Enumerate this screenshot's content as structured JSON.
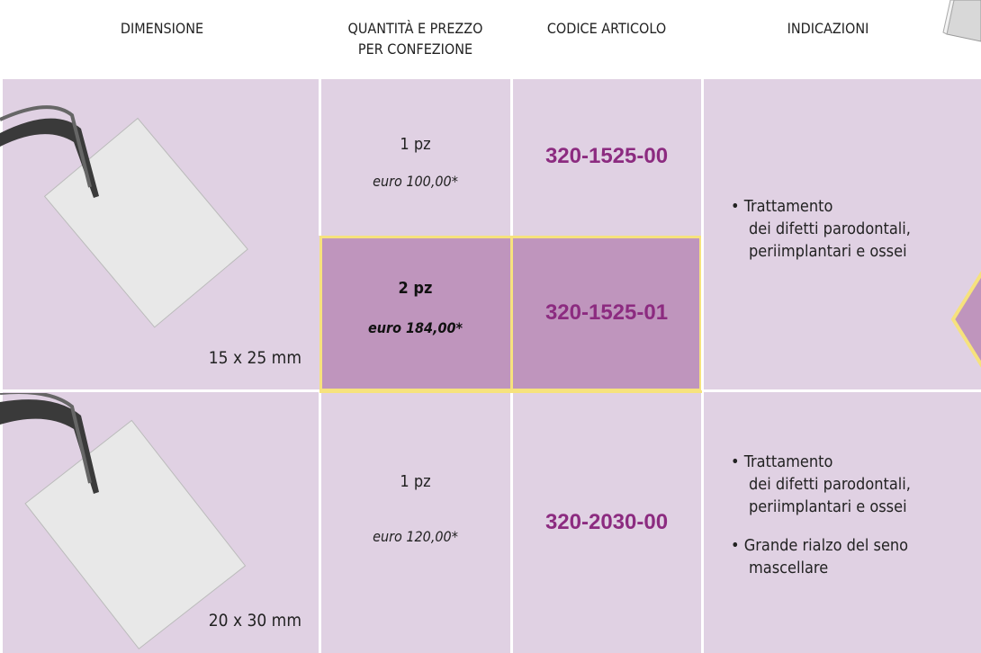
{
  "header": {
    "columns": [
      [
        "DIMENSIONE"
      ],
      [
        "QUANTITÀ E PREZZO",
        "PER CONFEZIONE"
      ],
      [
        "CODICE ARTICOLO"
      ],
      [
        "INDICAZIONI"
      ]
    ]
  },
  "rows": [
    {
      "dimension": "15 x 25 mm",
      "options": [
        {
          "quantity": "1 pz",
          "price": "euro 100,00*",
          "code": "320-1525-00"
        },
        {
          "quantity": "2 pz",
          "price": "euro 184,00*",
          "code": "320-1525-01"
        }
      ],
      "indications": [
        [
          "Trattamento",
          "dei difetti parodontali,",
          "periimplantari e ossei"
        ]
      ]
    },
    {
      "dimension": "20 x 30 mm",
      "options": [
        {
          "quantity": "1 pz",
          "price": "euro 120,00*",
          "code": "320-2030-00"
        }
      ],
      "indications": [
        [
          "Trattamento",
          "dei difetti parodontali,",
          "periimplantari e ossei"
        ],
        [
          "Grande rialzo del seno",
          "mascellare"
        ]
      ]
    }
  ]
}
